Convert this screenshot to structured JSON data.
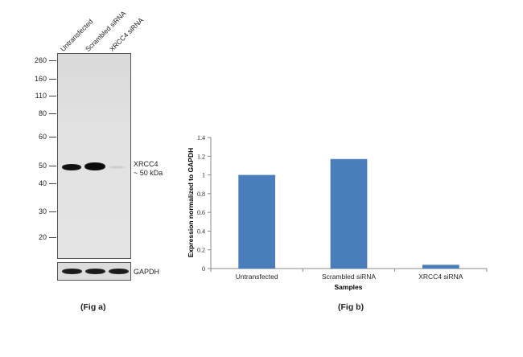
{
  "figure_a": {
    "lanes": [
      "Untransfected",
      "Scrambled siRNA",
      "XRCC4 siRNA"
    ],
    "mw_markers": [
      "260",
      "160",
      "110",
      "80",
      "60",
      "50",
      "40",
      "30",
      "20"
    ],
    "band_label_1": "XRCC4",
    "band_label_2": "~ 50 kDa",
    "loading_control": "GAPDH",
    "caption": "(Fig a)"
  },
  "figure_b": {
    "caption": "(Fig b)"
  },
  "chart_data": {
    "type": "bar",
    "categories": [
      "Untransfected",
      "Scrambled siRNA",
      "XRCC4 siRNA"
    ],
    "values": [
      1.0,
      1.17,
      0.04
    ],
    "xlabel": "Samples",
    "ylabel": "Expression  normalized to GAPDH",
    "ylim": [
      0,
      1.4
    ],
    "yticks": [
      "0",
      "0.2",
      "0.4",
      "0.6",
      "0.8",
      "1",
      "1.2",
      "1.4"
    ],
    "bar_color": "#4a7ebb",
    "grid": false,
    "legend": "none"
  }
}
